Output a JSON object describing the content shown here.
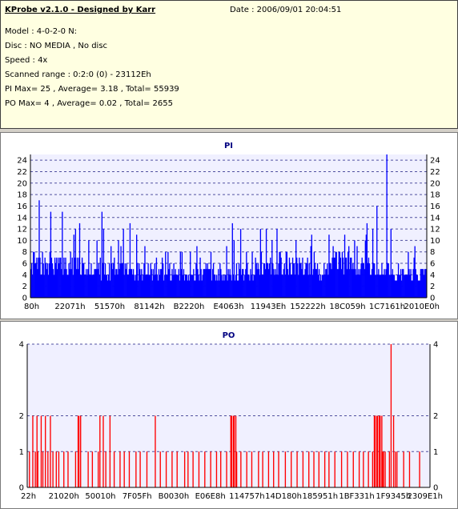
{
  "info": {
    "title": "KProbe v2.1.0 - Designed by Karr",
    "date": "Date : 2006/09/01 20:04:51",
    "model": "Model : 4-0-2-0 N:",
    "disc": "Disc : NO MEDIA , No disc",
    "speed": "Speed : 4x",
    "range": "Scanned range : 0:2:0 (0) - 23112Eh",
    "pi_summary": "PI Max= 25 , Average= 3.18 , Total= 55939",
    "po_summary": "PO Max= 4 , Average= 0.02 , Total= 2655"
  },
  "colors": {
    "pi": "#0000ff",
    "po": "#ff0000",
    "plot_bg": "#f0f0ff",
    "grid": "#5050a0"
  },
  "chart_data": [
    {
      "type": "bar",
      "title": "PI",
      "xlabel": "",
      "ylabel": "",
      "ylim": [
        0,
        25
      ],
      "yticks": [
        0,
        2,
        4,
        6,
        8,
        10,
        12,
        14,
        16,
        18,
        20,
        22,
        24
      ],
      "xticks": [
        "80h",
        "22071h",
        "51570h",
        "81142h",
        "B2220h",
        "E4063h",
        "11943Eh",
        "152222h",
        "18C059h",
        "1C7161h",
        "2010E0h"
      ],
      "grid": true,
      "n": 480,
      "profile": [
        [
          0,
          7
        ],
        [
          10,
          6.8
        ],
        [
          20,
          6.2
        ],
        [
          30,
          5.6
        ],
        [
          40,
          5.3
        ],
        [
          50,
          5.1
        ],
        [
          60,
          5.3
        ],
        [
          70,
          6.2
        ],
        [
          80,
          6.8
        ],
        [
          86,
          7.2
        ],
        [
          88,
          4
        ],
        [
          92,
          7.5
        ],
        [
          100,
          7
        ],
        [
          107,
          5.5
        ],
        [
          114,
          4.8
        ],
        [
          120,
          5.5
        ]
      ],
      "peaks": [
        [
          0.02,
          17
        ],
        [
          0.05,
          15
        ],
        [
          0.08,
          15
        ],
        [
          0.18,
          15
        ],
        [
          0.25,
          13
        ],
        [
          0.51,
          13
        ],
        [
          0.53,
          12
        ],
        [
          0.58,
          12
        ],
        [
          0.71,
          11
        ],
        [
          0.85,
          13
        ],
        [
          0.875,
          16
        ],
        [
          0.9,
          25
        ],
        [
          0.91,
          12
        ]
      ],
      "series": [
        {
          "values": []
        }
      ]
    },
    {
      "type": "bar",
      "title": "PO",
      "xlabel": "",
      "ylabel": "",
      "ylim": [
        0,
        4
      ],
      "yticks": [
        0,
        1,
        2,
        4
      ],
      "xticks": [
        "22h",
        "21020h",
        "50010h",
        "7F05Fh",
        "B0030h",
        "E06E8h",
        "114757h",
        "14D180h",
        "185951h",
        "1BF331h",
        "1F9345h",
        "2309E1h"
      ],
      "grid": true,
      "n": 480,
      "points": [
        [
          0.005,
          1
        ],
        [
          0.012,
          2
        ],
        [
          0.018,
          1
        ],
        [
          0.022,
          2
        ],
        [
          0.026,
          1
        ],
        [
          0.033,
          2
        ],
        [
          0.038,
          1
        ],
        [
          0.044,
          2
        ],
        [
          0.05,
          1
        ],
        [
          0.057,
          2
        ],
        [
          0.062,
          1
        ],
        [
          0.07,
          1
        ],
        [
          0.078,
          1
        ],
        [
          0.09,
          1
        ],
        [
          0.1,
          1
        ],
        [
          0.118,
          1
        ],
        [
          0.125,
          2
        ],
        [
          0.128,
          2
        ],
        [
          0.132,
          2
        ],
        [
          0.15,
          1
        ],
        [
          0.16,
          1
        ],
        [
          0.175,
          1
        ],
        [
          0.18,
          2
        ],
        [
          0.188,
          2
        ],
        [
          0.195,
          1
        ],
        [
          0.205,
          2
        ],
        [
          0.215,
          1
        ],
        [
          0.23,
          1
        ],
        [
          0.24,
          1
        ],
        [
          0.252,
          1
        ],
        [
          0.27,
          1
        ],
        [
          0.28,
          1
        ],
        [
          0.296,
          1
        ],
        [
          0.318,
          2
        ],
        [
          0.33,
          1
        ],
        [
          0.345,
          1
        ],
        [
          0.36,
          1
        ],
        [
          0.372,
          1
        ],
        [
          0.39,
          1
        ],
        [
          0.398,
          1
        ],
        [
          0.412,
          1
        ],
        [
          0.425,
          1
        ],
        [
          0.44,
          1
        ],
        [
          0.455,
          1
        ],
        [
          0.47,
          1
        ],
        [
          0.48,
          1
        ],
        [
          0.495,
          1
        ],
        [
          0.505,
          2
        ],
        [
          0.508,
          2
        ],
        [
          0.511,
          2
        ],
        [
          0.514,
          2
        ],
        [
          0.517,
          2
        ],
        [
          0.52,
          1
        ],
        [
          0.53,
          1
        ],
        [
          0.545,
          1
        ],
        [
          0.558,
          1
        ],
        [
          0.575,
          1
        ],
        [
          0.585,
          1
        ],
        [
          0.6,
          1
        ],
        [
          0.612,
          1
        ],
        [
          0.625,
          1
        ],
        [
          0.64,
          1
        ],
        [
          0.655,
          1
        ],
        [
          0.67,
          1
        ],
        [
          0.685,
          1
        ],
        [
          0.7,
          1
        ],
        [
          0.712,
          1
        ],
        [
          0.725,
          1
        ],
        [
          0.738,
          1
        ],
        [
          0.75,
          1
        ],
        [
          0.765,
          1
        ],
        [
          0.78,
          1
        ],
        [
          0.795,
          1
        ],
        [
          0.81,
          1
        ],
        [
          0.825,
          1
        ],
        [
          0.835,
          1
        ],
        [
          0.848,
          1
        ],
        [
          0.858,
          1
        ],
        [
          0.862,
          2
        ],
        [
          0.865,
          2
        ],
        [
          0.868,
          2
        ],
        [
          0.871,
          2
        ],
        [
          0.874,
          2
        ],
        [
          0.877,
          2
        ],
        [
          0.88,
          2
        ],
        [
          0.883,
          1
        ],
        [
          0.886,
          1
        ],
        [
          0.89,
          1
        ],
        [
          0.9,
          1
        ],
        [
          0.905,
          4
        ],
        [
          0.91,
          2
        ],
        [
          0.914,
          1
        ],
        [
          0.918,
          1
        ],
        [
          0.935,
          1
        ],
        [
          0.95,
          1
        ],
        [
          0.975,
          1
        ]
      ],
      "series": [
        {
          "values": []
        }
      ]
    }
  ]
}
